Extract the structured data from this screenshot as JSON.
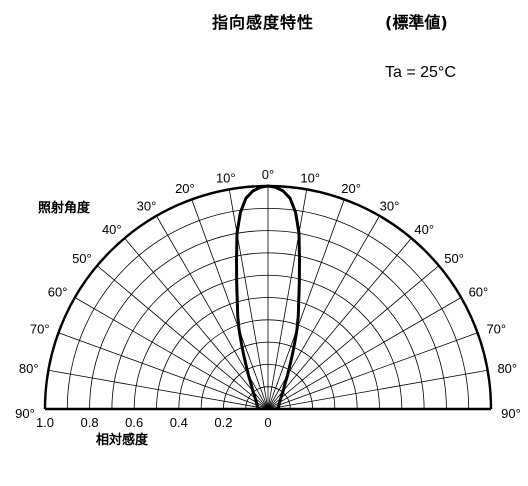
{
  "title": "指向感度特性",
  "subtitle": "(標準値)",
  "condition": "Ta = 25°C",
  "chart_data": {
    "type": "polar",
    "angle_label": "照射角度",
    "radial_label": "相対感度",
    "angle_range_deg": [
      -90,
      90
    ],
    "angle_ticks_deg": [
      0,
      10,
      20,
      30,
      40,
      50,
      60,
      70,
      80,
      90
    ],
    "angle_tick_labels": [
      "0°",
      "10°",
      "20°",
      "30°",
      "40°",
      "50°",
      "60°",
      "70°",
      "80°",
      "90°"
    ],
    "radial_ticks": [
      1.0,
      0.8,
      0.6,
      0.4,
      0.2,
      0
    ],
    "radial_tick_labels": [
      "1.0",
      "0.8",
      "0.6",
      "0.4",
      "0.2",
      "0"
    ],
    "radial_range": [
      0,
      1.0
    ],
    "grid": true,
    "series": [
      {
        "angles_deg": [
          0,
          2,
          4,
          6,
          8,
          10,
          12,
          14,
          16,
          18,
          20,
          22,
          24,
          26,
          28,
          30,
          35,
          40,
          45,
          50,
          55,
          60,
          70,
          80,
          90
        ],
        "values": [
          1.0,
          0.995,
          0.98,
          0.95,
          0.89,
          0.8,
          0.68,
          0.58,
          0.5,
          0.44,
          0.38,
          0.32,
          0.27,
          0.23,
          0.2,
          0.175,
          0.13,
          0.105,
          0.087,
          0.075,
          0.066,
          0.06,
          0.052,
          0.048,
          0.046
        ]
      }
    ]
  }
}
